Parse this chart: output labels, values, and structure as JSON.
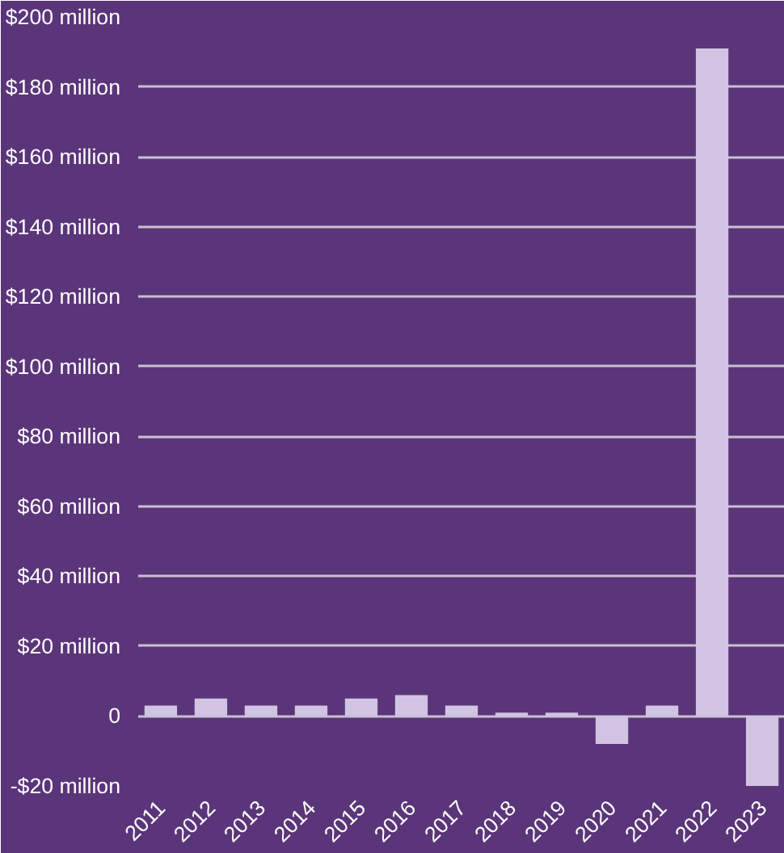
{
  "chart_data": {
    "type": "bar",
    "categories": [
      "2011",
      "2012",
      "2013",
      "2014",
      "2015",
      "2016",
      "2017",
      "2018",
      "2019",
      "2020",
      "2021",
      "2022",
      "2023"
    ],
    "values": [
      3,
      5,
      3,
      3,
      5,
      6,
      3,
      1,
      1,
      -8,
      3,
      191,
      -20
    ],
    "color": "#d0c4e2",
    "ylim": [
      -20,
      200
    ],
    "yticks": [
      {
        "value": -20,
        "label": "-$20 million"
      },
      0,
      {
        "value": 20,
        "label": "$20 million"
      },
      {
        "value": 40,
        "label": "$40 million"
      },
      {
        "value": 60,
        "label": "$60 million"
      },
      {
        "value": 80,
        "label": "$80 million"
      },
      {
        "value": 100,
        "label": "$100 million"
      },
      {
        "value": 120,
        "label": "$120 million"
      },
      {
        "value": 140,
        "label": "$140 million"
      },
      {
        "value": 160,
        "label": "$160 million"
      },
      {
        "value": 180,
        "label": "$180 million"
      },
      {
        "value": 200,
        "label": "$200 million"
      }
    ],
    "grid": "y"
  }
}
